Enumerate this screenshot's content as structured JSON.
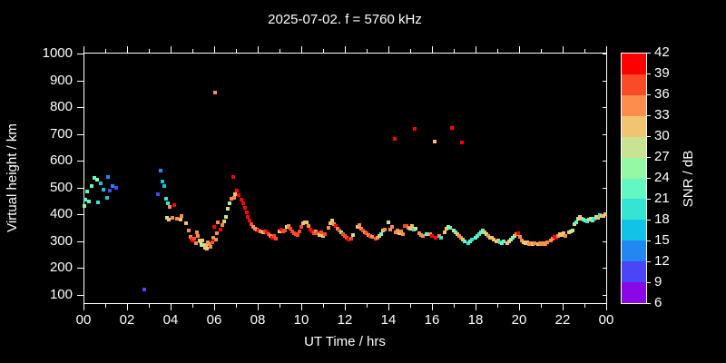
{
  "title": "2025-07-02. f = 5760 kHz",
  "x_axis": {
    "label": "UT Time / hrs",
    "tick_labels": [
      "00",
      "02",
      "04",
      "06",
      "08",
      "10",
      "12",
      "14",
      "16",
      "18",
      "20",
      "22",
      "00"
    ]
  },
  "y_axis": {
    "label": "Virtual height / km",
    "tick_labels": [
      "100",
      "200",
      "300",
      "400",
      "500",
      "600",
      "700",
      "800",
      "900",
      "1000"
    ]
  },
  "colorbar": {
    "label": "SNR / dB",
    "tick_labels": [
      "42",
      "39",
      "36",
      "33",
      "30",
      "27",
      "24",
      "21",
      "18",
      "15",
      "12",
      "9",
      "6"
    ],
    "colors_low_to_high": [
      "#8a08e8",
      "#4a46f8",
      "#2287f0",
      "#12c3e8",
      "#35e4d2",
      "#63f8c1",
      "#95f8a4",
      "#c8e492",
      "#f0c470",
      "#fc8d4d",
      "#fb4a27",
      "#ff0000"
    ]
  },
  "chart_data": {
    "type": "scatter",
    "title": "2025-07-02. f = 5760 kHz",
    "xlabel": "UT Time / hrs",
    "ylabel": "Virtual height / km",
    "xlim": [
      0,
      24
    ],
    "ylim": [
      100,
      1000
    ],
    "grid": false,
    "background": "#000000",
    "marker": "square-4px",
    "color_scale": {
      "label": "SNR / dB",
      "min": 6,
      "max": 42,
      "step": 3
    },
    "points_format": [
      "time_hr",
      "virtual_height_km",
      "snr_db"
    ],
    "points": [
      [
        0.04,
        430,
        25.5
      ],
      [
        0.08,
        455,
        22.5
      ],
      [
        0.17,
        487,
        22.5
      ],
      [
        0.25,
        450,
        22.5
      ],
      [
        0.38,
        506,
        22.5
      ],
      [
        0.5,
        536,
        22.5
      ],
      [
        0.63,
        530,
        25.5
      ],
      [
        0.67,
        445,
        19.5
      ],
      [
        0.79,
        516,
        16.5
      ],
      [
        0.92,
        492,
        16.5
      ],
      [
        1.08,
        462,
        16.5
      ],
      [
        1.13,
        540,
        13.5
      ],
      [
        1.21,
        489,
        10.5
      ],
      [
        1.33,
        506,
        13.5
      ],
      [
        1.5,
        499,
        10.5
      ],
      [
        2.79,
        120,
        10.5
      ],
      [
        3.42,
        476,
        10.5
      ],
      [
        3.54,
        563,
        13.5
      ],
      [
        3.63,
        522,
        16.5
      ],
      [
        3.71,
        506,
        16.5
      ],
      [
        3.79,
        459,
        19.5
      ],
      [
        3.83,
        388,
        28.5
      ],
      [
        3.88,
        442,
        19.5
      ],
      [
        3.92,
        381,
        31.5
      ],
      [
        3.96,
        428,
        34.5
      ],
      [
        4.08,
        388,
        34.5
      ],
      [
        4.17,
        435,
        40.5
      ],
      [
        4.29,
        384,
        34.5
      ],
      [
        4.46,
        381,
        31.5
      ],
      [
        4.5,
        394,
        34.5
      ],
      [
        4.71,
        367,
        31.5
      ],
      [
        4.83,
        340,
        34.5
      ],
      [
        4.92,
        317,
        34.5
      ],
      [
        4.96,
        310,
        37.5
      ],
      [
        5.0,
        303,
        40.5
      ],
      [
        5.08,
        310,
        37.5
      ],
      [
        5.17,
        293,
        34.5
      ],
      [
        5.21,
        334,
        34.5
      ],
      [
        5.25,
        320,
        34.5
      ],
      [
        5.33,
        303,
        31.5
      ],
      [
        5.38,
        300,
        28.5
      ],
      [
        5.42,
        286,
        28.5
      ],
      [
        5.46,
        303,
        31.5
      ],
      [
        5.54,
        286,
        28.5
      ],
      [
        5.58,
        276,
        28.5
      ],
      [
        5.63,
        283,
        31.5
      ],
      [
        5.67,
        272,
        31.5
      ],
      [
        5.71,
        296,
        34.5
      ],
      [
        5.79,
        290,
        34.5
      ],
      [
        5.83,
        280,
        34.5
      ],
      [
        5.92,
        296,
        37.5
      ],
      [
        5.96,
        313,
        34.5
      ],
      [
        6.0,
        354,
        40.5
      ],
      [
        6.04,
        854,
        34.5
      ],
      [
        6.08,
        306,
        34.5
      ],
      [
        6.13,
        330,
        34.5
      ],
      [
        6.17,
        371,
        34.5
      ],
      [
        6.29,
        344,
        40.5
      ],
      [
        6.38,
        360,
        34.5
      ],
      [
        6.46,
        374,
        31.5
      ],
      [
        6.54,
        391,
        28.5
      ],
      [
        6.63,
        421,
        28.5
      ],
      [
        6.71,
        442,
        28.5
      ],
      [
        6.79,
        459,
        34.5
      ],
      [
        6.88,
        540,
        40.5
      ],
      [
        6.92,
        462,
        34.5
      ],
      [
        6.96,
        476,
        31.5
      ],
      [
        7.04,
        489,
        40.5
      ],
      [
        7.13,
        472,
        40.5
      ],
      [
        7.25,
        455,
        40.5
      ],
      [
        7.33,
        442,
        40.5
      ],
      [
        7.42,
        425,
        40.5
      ],
      [
        7.5,
        408,
        40.5
      ],
      [
        7.54,
        391,
        40.5
      ],
      [
        7.63,
        378,
        40.5
      ],
      [
        7.71,
        364,
        37.5
      ],
      [
        7.79,
        354,
        34.5
      ],
      [
        7.88,
        347,
        34.5
      ],
      [
        7.96,
        344,
        34.5
      ],
      [
        8.04,
        340,
        40.5
      ],
      [
        8.13,
        337,
        34.5
      ],
      [
        8.25,
        334,
        31.5
      ],
      [
        8.33,
        337,
        37.5
      ],
      [
        8.42,
        334,
        40.5
      ],
      [
        8.5,
        327,
        37.5
      ],
      [
        8.58,
        320,
        34.5
      ],
      [
        8.67,
        313,
        40.5
      ],
      [
        8.75,
        320,
        37.5
      ],
      [
        8.83,
        310,
        37.5
      ],
      [
        9.0,
        337,
        31.5
      ],
      [
        9.08,
        344,
        40.5
      ],
      [
        9.17,
        337,
        37.5
      ],
      [
        9.25,
        340,
        37.5
      ],
      [
        9.33,
        354,
        28.5
      ],
      [
        9.42,
        357,
        34.5
      ],
      [
        9.5,
        347,
        37.5
      ],
      [
        9.58,
        337,
        37.5
      ],
      [
        9.67,
        330,
        37.5
      ],
      [
        9.75,
        327,
        37.5
      ],
      [
        9.83,
        324,
        37.5
      ],
      [
        9.92,
        337,
        37.5
      ],
      [
        10.0,
        354,
        37.5
      ],
      [
        10.08,
        367,
        31.5
      ],
      [
        10.17,
        371,
        31.5
      ],
      [
        10.25,
        371,
        31.5
      ],
      [
        10.33,
        357,
        34.5
      ],
      [
        10.42,
        344,
        40.5
      ],
      [
        10.5,
        337,
        40.5
      ],
      [
        10.58,
        330,
        37.5
      ],
      [
        10.67,
        337,
        34.5
      ],
      [
        10.75,
        330,
        37.5
      ],
      [
        10.83,
        324,
        31.5
      ],
      [
        10.92,
        334,
        37.5
      ],
      [
        11.0,
        320,
        31.5
      ],
      [
        11.08,
        327,
        37.5
      ],
      [
        11.25,
        350,
        34.5
      ],
      [
        11.33,
        367,
        31.5
      ],
      [
        11.42,
        378,
        31.5
      ],
      [
        11.5,
        364,
        34.5
      ],
      [
        11.58,
        357,
        40.5
      ],
      [
        11.67,
        347,
        34.5
      ],
      [
        11.75,
        340,
        37.5
      ],
      [
        11.83,
        334,
        22.5
      ],
      [
        11.92,
        327,
        37.5
      ],
      [
        12.0,
        320,
        37.5
      ],
      [
        12.08,
        313,
        37.5
      ],
      [
        12.17,
        306,
        40.5
      ],
      [
        12.29,
        310,
        37.5
      ],
      [
        12.38,
        324,
        28.5
      ],
      [
        12.58,
        354,
        31.5
      ],
      [
        12.67,
        361,
        34.5
      ],
      [
        12.75,
        347,
        34.5
      ],
      [
        12.83,
        340,
        37.5
      ],
      [
        12.92,
        334,
        34.5
      ],
      [
        13.0,
        330,
        37.5
      ],
      [
        13.08,
        324,
        34.5
      ],
      [
        13.17,
        320,
        37.5
      ],
      [
        13.25,
        317,
        34.5
      ],
      [
        13.42,
        310,
        37.5
      ],
      [
        13.5,
        313,
        34.5
      ],
      [
        13.58,
        320,
        31.5
      ],
      [
        13.67,
        327,
        22.5
      ],
      [
        13.75,
        340,
        31.5
      ],
      [
        13.83,
        344,
        34.5
      ],
      [
        14.0,
        371,
        28.5
      ],
      [
        14.08,
        344,
        34.5
      ],
      [
        14.17,
        354,
        34.5
      ],
      [
        14.29,
        682,
        40.5
      ],
      [
        14.33,
        334,
        34.5
      ],
      [
        14.42,
        340,
        34.5
      ],
      [
        14.5,
        330,
        31.5
      ],
      [
        14.58,
        337,
        34.5
      ],
      [
        14.67,
        327,
        34.5
      ],
      [
        14.75,
        357,
        37.5
      ],
      [
        14.83,
        357,
        37.5
      ],
      [
        14.92,
        350,
        34.5
      ],
      [
        15.0,
        347,
        31.5
      ],
      [
        15.08,
        357,
        31.5
      ],
      [
        15.17,
        344,
        19.5
      ],
      [
        15.21,
        719,
        40.5
      ],
      [
        15.25,
        347,
        28.5
      ],
      [
        15.42,
        330,
        34.5
      ],
      [
        15.5,
        324,
        34.5
      ],
      [
        15.58,
        320,
        34.5
      ],
      [
        15.75,
        327,
        22.5
      ],
      [
        15.92,
        327,
        34.5
      ],
      [
        16.0,
        320,
        40.5
      ],
      [
        16.13,
        672,
        31.5
      ],
      [
        16.17,
        313,
        40.5
      ],
      [
        16.33,
        320,
        34.5
      ],
      [
        16.42,
        313,
        19.5
      ],
      [
        16.58,
        334,
        31.5
      ],
      [
        16.67,
        347,
        31.5
      ],
      [
        16.75,
        354,
        28.5
      ],
      [
        16.83,
        350,
        22.5
      ],
      [
        16.92,
        722,
        40.5
      ],
      [
        17.0,
        340,
        28.5
      ],
      [
        17.08,
        334,
        22.5
      ],
      [
        17.17,
        327,
        31.5
      ],
      [
        17.25,
        320,
        34.5
      ],
      [
        17.33,
        313,
        34.5
      ],
      [
        17.38,
        668,
        40.5
      ],
      [
        17.42,
        306,
        31.5
      ],
      [
        17.5,
        300,
        22.5
      ],
      [
        17.67,
        293,
        19.5
      ],
      [
        17.75,
        300,
        22.5
      ],
      [
        17.83,
        306,
        19.5
      ],
      [
        18.0,
        313,
        22.5
      ],
      [
        18.08,
        320,
        22.5
      ],
      [
        18.17,
        327,
        19.5
      ],
      [
        18.25,
        334,
        22.5
      ],
      [
        18.33,
        340,
        22.5
      ],
      [
        18.42,
        334,
        31.5
      ],
      [
        18.5,
        327,
        28.5
      ],
      [
        18.58,
        320,
        34.5
      ],
      [
        18.67,
        313,
        31.5
      ],
      [
        18.75,
        313,
        31.5
      ],
      [
        18.83,
        306,
        31.5
      ],
      [
        18.96,
        300,
        31.5
      ],
      [
        19.04,
        303,
        31.5
      ],
      [
        19.13,
        296,
        19.5
      ],
      [
        19.21,
        293,
        22.5
      ],
      [
        19.29,
        300,
        22.5
      ],
      [
        19.46,
        293,
        31.5
      ],
      [
        19.54,
        300,
        31.5
      ],
      [
        19.63,
        306,
        28.5
      ],
      [
        19.71,
        313,
        22.5
      ],
      [
        19.79,
        320,
        28.5
      ],
      [
        19.88,
        327,
        34.5
      ],
      [
        19.96,
        330,
        40.5
      ],
      [
        20.04,
        317,
        34.5
      ],
      [
        20.13,
        303,
        34.5
      ],
      [
        20.21,
        296,
        31.5
      ],
      [
        20.29,
        293,
        31.5
      ],
      [
        20.38,
        296,
        31.5
      ],
      [
        20.46,
        290,
        34.5
      ],
      [
        20.54,
        293,
        34.5
      ],
      [
        20.63,
        290,
        31.5
      ],
      [
        20.71,
        293,
        34.5
      ],
      [
        20.88,
        290,
        31.5
      ],
      [
        20.96,
        293,
        34.5
      ],
      [
        21.04,
        290,
        34.5
      ],
      [
        21.13,
        293,
        34.5
      ],
      [
        21.21,
        290,
        34.5
      ],
      [
        21.29,
        296,
        34.5
      ],
      [
        21.46,
        303,
        34.5
      ],
      [
        21.54,
        310,
        34.5
      ],
      [
        21.63,
        317,
        40.5
      ],
      [
        21.71,
        313,
        40.5
      ],
      [
        21.79,
        320,
        34.5
      ],
      [
        21.88,
        327,
        31.5
      ],
      [
        21.96,
        324,
        31.5
      ],
      [
        22.04,
        330,
        31.5
      ],
      [
        22.13,
        320,
        34.5
      ],
      [
        22.29,
        334,
        31.5
      ],
      [
        22.38,
        337,
        28.5
      ],
      [
        22.46,
        340,
        28.5
      ],
      [
        22.54,
        364,
        28.5
      ],
      [
        22.63,
        371,
        22.5
      ],
      [
        22.71,
        384,
        28.5
      ],
      [
        22.79,
        391,
        31.5
      ],
      [
        22.88,
        384,
        31.5
      ],
      [
        22.96,
        381,
        22.5
      ],
      [
        23.04,
        378,
        22.5
      ],
      [
        23.13,
        374,
        19.5
      ],
      [
        23.21,
        381,
        28.5
      ],
      [
        23.29,
        384,
        28.5
      ],
      [
        23.38,
        378,
        22.5
      ],
      [
        23.46,
        384,
        19.5
      ],
      [
        23.54,
        391,
        28.5
      ],
      [
        23.63,
        388,
        31.5
      ],
      [
        23.71,
        398,
        19.5
      ],
      [
        23.79,
        394,
        31.5
      ],
      [
        23.88,
        394,
        31.5
      ],
      [
        23.96,
        401,
        31.5
      ]
    ]
  }
}
